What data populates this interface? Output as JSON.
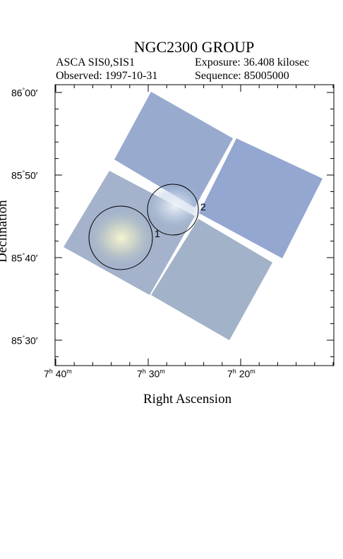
{
  "header": {
    "title": "NGC2300 GROUP",
    "instrument": "ASCA SIS0,SIS1",
    "exposure": "Exposure: 36.408 kilosec",
    "observed": "Observed: 1997-10-31",
    "sequence": "Sequence: 85005000"
  },
  "axes": {
    "xlabel": "Right Ascension",
    "ylabel": "Declination",
    "y_ticks": [
      {
        "deg": "86",
        "min": "00"
      },
      {
        "deg": "85",
        "min": "50"
      },
      {
        "deg": "85",
        "min": "40"
      },
      {
        "deg": "85",
        "min": "30"
      }
    ],
    "x_ticks": [
      {
        "h": "7",
        "m": "40"
      },
      {
        "h": "7",
        "m": "30"
      },
      {
        "h": "7",
        "m": "20"
      }
    ],
    "hour_unit": "h",
    "minute_unit": "m",
    "deg_symbol": "°",
    "arcmin_symbol": "′"
  },
  "sources": [
    {
      "label": "1"
    },
    {
      "label": "2"
    }
  ],
  "colors": {
    "image_blue": "#8fa6cc",
    "image_green": "#a7b9c5",
    "hotspot": "#f3f3d4"
  }
}
